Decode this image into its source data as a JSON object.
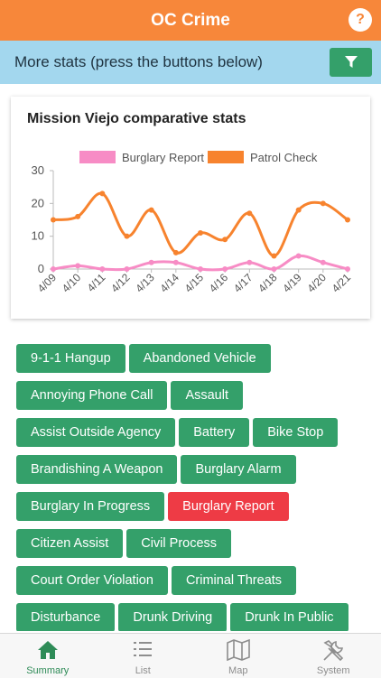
{
  "header": {
    "title": "OC Crime",
    "help": "?"
  },
  "stats_bar": {
    "label": "More stats (press the buttons below)"
  },
  "chart": {
    "title": "Mission Viejo comparative stats"
  },
  "chart_data": {
    "type": "line",
    "title": "Mission Viejo comparative stats",
    "categories": [
      "4/09",
      "4/10",
      "4/11",
      "4/12",
      "4/13",
      "4/14",
      "4/15",
      "4/16",
      "4/17",
      "4/18",
      "4/19",
      "4/20",
      "4/21"
    ],
    "series": [
      {
        "name": "Burglary Report",
        "color": "#f78cc5",
        "values": [
          0,
          1,
          0,
          0,
          2,
          2,
          0,
          0,
          2,
          0,
          4,
          2,
          0
        ]
      },
      {
        "name": "Patrol Check",
        "color": "#f7832e",
        "values": [
          15,
          16,
          23,
          10,
          18,
          5,
          11,
          9,
          17,
          4,
          18,
          20,
          15
        ]
      }
    ],
    "yticks": [
      0,
      10,
      20,
      30
    ],
    "ylim": [
      0,
      30
    ],
    "grid": false,
    "legend": "top"
  },
  "tags": [
    {
      "label": "9-1-1 Hangup",
      "active": false
    },
    {
      "label": "Abandoned Vehicle",
      "active": false
    },
    {
      "label": "Annoying Phone Call",
      "active": false
    },
    {
      "label": "Assault",
      "active": false
    },
    {
      "label": "Assist Outside Agency",
      "active": false
    },
    {
      "label": "Battery",
      "active": false
    },
    {
      "label": "Bike Stop",
      "active": false
    },
    {
      "label": "Brandishing A Weapon",
      "active": false
    },
    {
      "label": "Burglary Alarm",
      "active": false
    },
    {
      "label": "Burglary In Progress",
      "active": false
    },
    {
      "label": "Burglary Report",
      "active": true
    },
    {
      "label": "Citizen Assist",
      "active": false
    },
    {
      "label": "Civil Process",
      "active": false
    },
    {
      "label": "Court Order Violation",
      "active": false
    },
    {
      "label": "Criminal Threats",
      "active": false
    },
    {
      "label": "Disturbance",
      "active": false
    },
    {
      "label": "Drunk Driving",
      "active": false
    },
    {
      "label": "Drunk In Public",
      "active": false
    }
  ],
  "tabbar": {
    "items": [
      {
        "label": "Summary",
        "icon": "home-icon",
        "active": true
      },
      {
        "label": "List",
        "icon": "list-icon",
        "active": false
      },
      {
        "label": "Map",
        "icon": "map-icon",
        "active": false
      },
      {
        "label": "System",
        "icon": "tools-icon",
        "active": false
      }
    ]
  },
  "colors": {
    "header": "#f7873a",
    "stats_bar": "#a3d7ee",
    "tag": "#34a06a",
    "tag_active": "#ee3b45",
    "tab_active": "#2e8b57"
  }
}
